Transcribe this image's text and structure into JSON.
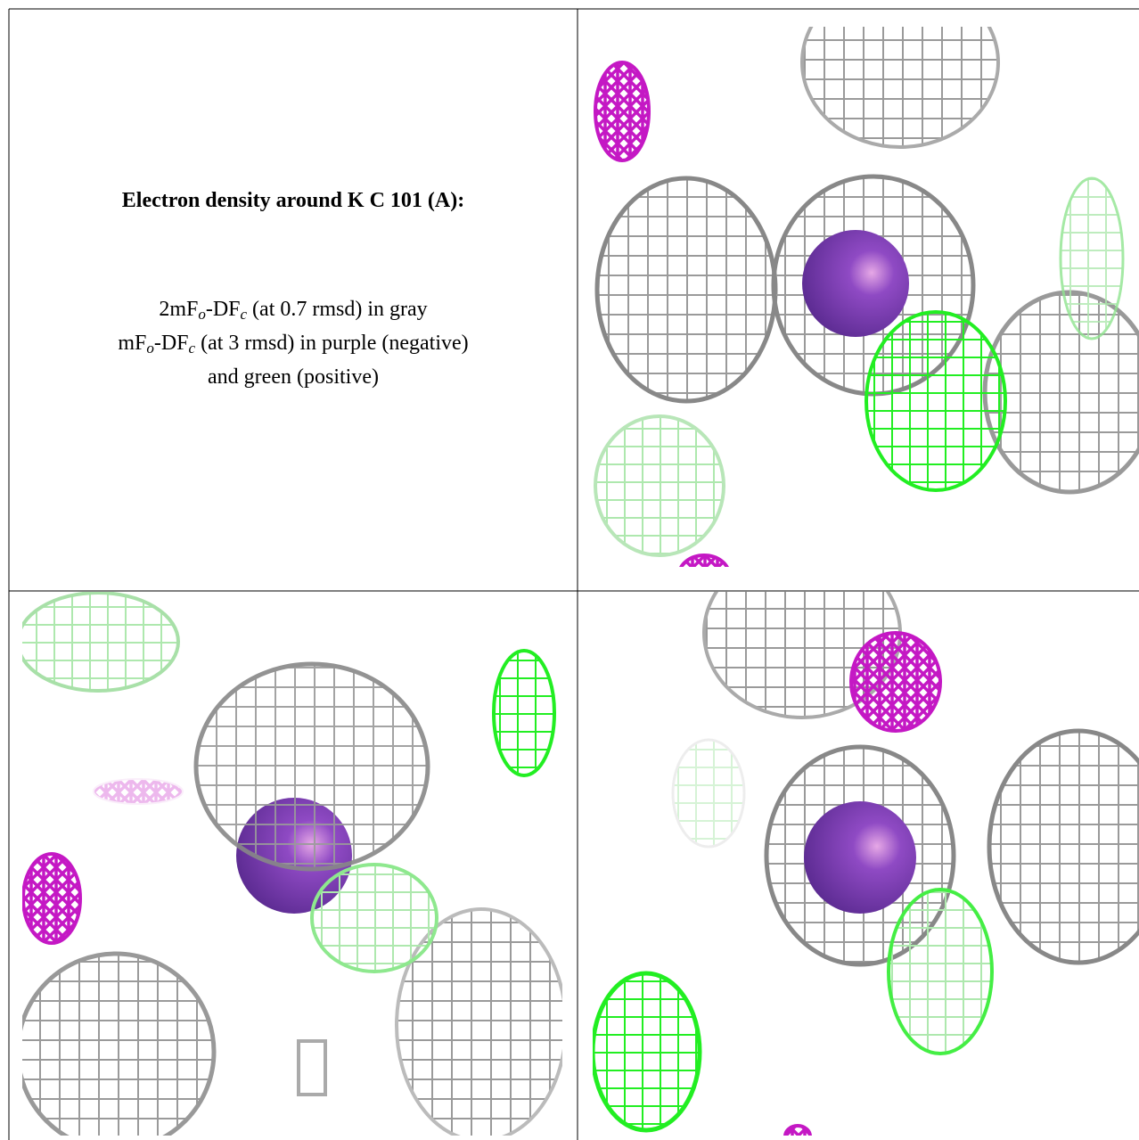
{
  "figure_text": {
    "title": "Electron density around K C 101 (A):",
    "legend_lines": [
      [
        "2mF",
        "o",
        "-DF",
        "c",
        " (at 0.7 rmsd) in gray"
      ],
      [
        "mF",
        "o",
        "-DF",
        "c",
        " (at 3 rmsd) in purple (negative)"
      ],
      [
        "and green (positive)"
      ]
    ]
  }
}
